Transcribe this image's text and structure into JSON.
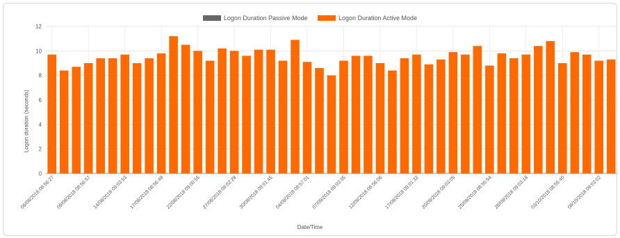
{
  "chart_data": {
    "type": "bar",
    "series": [
      {
        "name": "Logon Duration Passive Mode",
        "color": "#666666",
        "values": []
      },
      {
        "name": "Logon Duration Active Mode",
        "color": "#ff6a00",
        "values": [
          9.7,
          8.4,
          8.7,
          9.0,
          9.4,
          9.4,
          9.7,
          9.0,
          9.4,
          9.8,
          11.2,
          10.5,
          10.0,
          9.2,
          10.2,
          10.0,
          9.6,
          10.1,
          10.1,
          9.2,
          10.9,
          9.1,
          8.6,
          8.0,
          9.2,
          9.6,
          9.6,
          9.0,
          8.4,
          9.4,
          9.7,
          8.9,
          9.3,
          9.9,
          9.7,
          10.4,
          8.8,
          9.8,
          9.4,
          9.7,
          10.4,
          10.8,
          9.0,
          9.9,
          9.7,
          9.2,
          9.3
        ]
      }
    ],
    "xtick_labels": [
      "06/08/2018 08:56:27",
      "09/08/2018 08:56:57",
      "14/08/2018 09:03:53",
      "17/08/2018 08:56:49",
      "22/08/2018 09:00:55",
      "27/08/2018 09:02:29",
      "30/08/2018 09:01:45",
      "04/09/2018 08:57:01",
      "07/09/2018 09:03:35",
      "12/09/2018 08:56:06",
      "17/09/2018 09:01:32",
      "20/09/2018 09:03:05",
      "25/09/2018 08:55:54",
      "28/09/2018 09:03:18",
      "03/10/2018 08:55:40",
      "08/10/2018 09:03:02"
    ],
    "yticks": [
      "0",
      "2",
      "4",
      "6",
      "8",
      "10",
      "12"
    ],
    "ylim": [
      0,
      12
    ],
    "xlabel": "Date/Time",
    "ylabel": "Logon duration (seconds)",
    "grid": true,
    "legend_position": "top"
  }
}
